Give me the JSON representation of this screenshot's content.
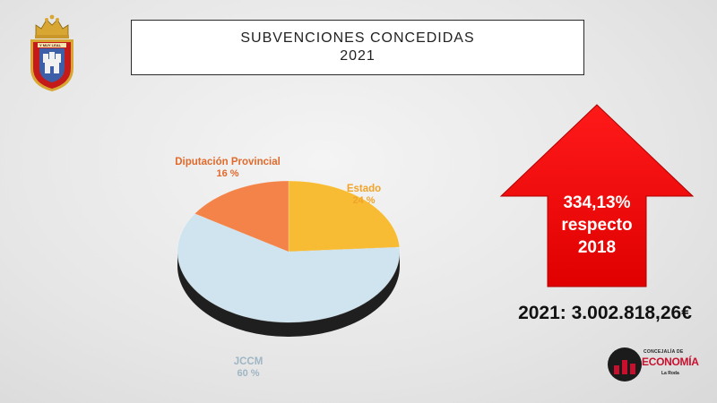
{
  "header": {
    "title_line1": "SUBVENCIONES CONCEDIDAS",
    "title_line2": "2021"
  },
  "chart_data": {
    "type": "pie",
    "title": "",
    "slices": [
      {
        "label": "Estado",
        "value": 24,
        "value_label": "24 %",
        "color": "#f7bc33"
      },
      {
        "label": "JCCM",
        "value": 60,
        "value_label": "60 %",
        "color": "#cfe4ee"
      },
      {
        "label": "Diputación Provincial",
        "value": 16,
        "value_label": "16 %",
        "color": "#f4834a"
      }
    ],
    "label_colors": {
      "Estado": "#f0a42a",
      "JCCM": "#9fb6c4",
      "Diputación Provincial": "#e06a2c"
    }
  },
  "highlight": {
    "line1": "334,13%",
    "line2": "respecto",
    "line3": "2018",
    "arrow_color": "#ee0000"
  },
  "total": {
    "text": "2021: 3.002.818,26€"
  },
  "logo": {
    "small_text": "CONCEJALÍA DE",
    "main_text": "ECONOMÍA",
    "sub_text": "La Roda",
    "accent_color": "#c8102e"
  },
  "crest": {
    "ribbon_text": "Y MUY LEAL"
  }
}
